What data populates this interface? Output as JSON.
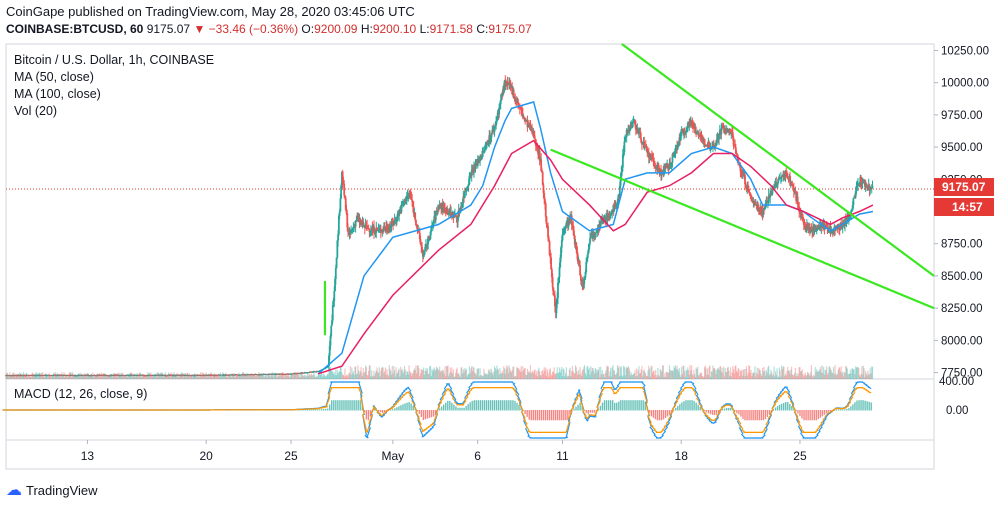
{
  "header": {
    "publisher": "CoinGape published on TradingView.com, May 28, 2020 03:45:06 UTC",
    "symbol": "COINBASE:BTCUSD, 60",
    "last": "9175.07",
    "change": "−33.46 (−0.36%)",
    "o_label": "O:",
    "o_value": "9200.09",
    "h_label": "H:",
    "h_value": "9200.10",
    "l_label": "L:",
    "l_value": "9171.58",
    "c_label": "C:",
    "c_value": "9175.07"
  },
  "legend": {
    "title": "Bitcoin / U.S. Dollar, 1h, COINBASE",
    "ma50": "MA (50, close)",
    "ma100": "MA (100, close)",
    "vol": "Vol (20)",
    "macd": "MACD (12, 26, close, 9)"
  },
  "price_label": "9175.07",
  "countdown_label": "14:57",
  "branding": "TradingView",
  "colors": {
    "up": "#26a69a",
    "down": "#ef5350",
    "ma50": "#2196f3",
    "ma100": "#e91e63",
    "trend": "#39e81f",
    "price_line": "#e53935"
  },
  "chart_data": {
    "type": "line",
    "ylim": [
      7700,
      10300
    ],
    "y_ticks": [
      7750,
      8000,
      8250,
      8500,
      8750,
      9000,
      9250,
      9500,
      9750,
      10000,
      10250
    ],
    "y_tick_labels": [
      "7750.00",
      "8000.00",
      "8250.00",
      "8500.00",
      "8750.00",
      "9000.00",
      "9250.00",
      "9500.00",
      "9750.00",
      "10000.00",
      "10250.00"
    ],
    "x_ticks": [
      {
        "label": "13",
        "day": 13
      },
      {
        "label": "20",
        "day": 20
      },
      {
        "label": "25",
        "day": 25
      },
      {
        "label": "May",
        "day": 31
      },
      {
        "label": "6",
        "day": 36
      },
      {
        "label": "11",
        "day": 41
      },
      {
        "label": "18",
        "day": 48
      },
      {
        "label": "25",
        "day": 55
      }
    ],
    "xlim": [
      8.2,
      62.9
    ],
    "series": [
      {
        "name": "Price",
        "x": [
          8.2,
          13,
          20,
          25,
          26.6,
          27.2,
          27.6,
          28.0,
          28.4,
          28.9,
          29.3,
          30.2,
          31.0,
          32.0,
          32.8,
          33.7,
          34.8,
          35.6,
          36.3,
          36.6,
          37.0,
          37.6,
          38.0,
          38.8,
          39.3,
          39.7,
          40.0,
          40.3,
          40.6,
          41.0,
          41.5,
          42.2,
          42.6,
          43.2,
          44.0,
          44.3,
          44.7,
          45.2,
          46.0,
          46.8,
          47.3,
          48.0,
          48.6,
          49.2,
          49.9,
          50.4,
          51.0,
          51.3,
          51.6,
          52.1,
          52.8,
          53.3,
          53.8,
          54.2,
          54.7,
          55.2,
          55.7,
          56.2,
          56.8,
          57.5,
          57.9,
          58.5,
          58.9,
          59.3
        ],
        "y": [
          7730,
          7730,
          7730,
          7740,
          7760,
          7800,
          8500,
          9300,
          8800,
          8950,
          8880,
          8850,
          8900,
          9150,
          8650,
          9050,
          8950,
          9300,
          9450,
          9550,
          9650,
          10000,
          9950,
          9700,
          9600,
          9400,
          9000,
          8600,
          8200,
          8850,
          8950,
          8400,
          8800,
          8900,
          9000,
          9100,
          9600,
          9700,
          9450,
          9300,
          9350,
          9600,
          9700,
          9550,
          9500,
          9650,
          9600,
          9400,
          9300,
          9100,
          9000,
          9150,
          9250,
          9300,
          9150,
          8900,
          8850,
          8900,
          8850,
          8900,
          8950,
          9250,
          9200,
          9175
        ]
      },
      {
        "name": "MA (50, close)",
        "x": [
          26.6,
          28.0,
          29.3,
          31.0,
          33.7,
          35.6,
          36.3,
          37.0,
          37.6,
          38.0,
          39.3,
          39.7,
          40.3,
          41.0,
          42.6,
          44.0,
          44.7,
          46.0,
          47.3,
          48.6,
          49.9,
          51.0,
          52.1,
          52.8,
          54.2,
          55.2,
          55.7,
          56.8,
          57.5,
          58.5,
          59.3
        ],
        "y": [
          7740,
          7900,
          8500,
          8800,
          8900,
          9050,
          9200,
          9500,
          9700,
          9800,
          9850,
          9650,
          9300,
          9000,
          8850,
          8900,
          9250,
          9300,
          9300,
          9450,
          9500,
          9450,
          9250,
          9050,
          9050,
          9000,
          8950,
          8850,
          8900,
          8980,
          9000
        ]
      },
      {
        "name": "MA (100, close)",
        "x": [
          26.6,
          28.0,
          29.3,
          31.0,
          33.7,
          35.6,
          37.0,
          38.0,
          39.3,
          40.3,
          41.0,
          42.6,
          44.0,
          44.7,
          46.0,
          47.3,
          48.6,
          49.9,
          51.0,
          52.1,
          53.3,
          54.2,
          55.2,
          56.8,
          57.5,
          58.5,
          59.3
        ],
        "y": [
          7740,
          7800,
          8050,
          8350,
          8700,
          8900,
          9200,
          9450,
          9550,
          9400,
          9250,
          9050,
          8850,
          8900,
          9150,
          9200,
          9300,
          9450,
          9450,
          9350,
          9200,
          9050,
          9000,
          8900,
          8950,
          9000,
          9050
        ]
      }
    ],
    "trendlines": [
      {
        "x": [
          44.5,
          62.9
        ],
        "y": [
          10300,
          8500
        ]
      },
      {
        "x": [
          40.3,
          62.9
        ],
        "y": [
          9480,
          8250
        ]
      },
      {
        "x": [
          27.0,
          27.0
        ],
        "y": [
          8460,
          8040
        ]
      }
    ],
    "macd": {
      "zero_label": "0.00",
      "top_label": "400.00"
    }
  }
}
